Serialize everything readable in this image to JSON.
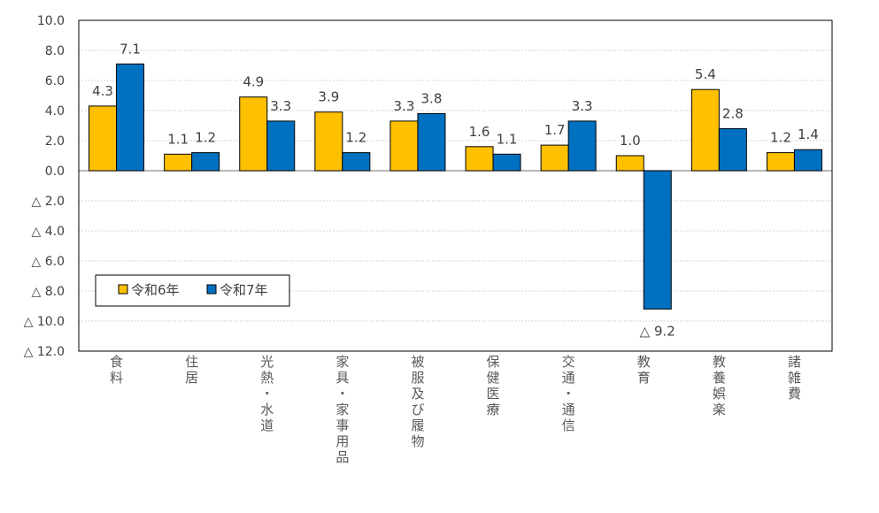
{
  "chart_data": {
    "type": "bar",
    "title": "",
    "xlabel": "",
    "ylabel": "",
    "ylim": [
      -12,
      10
    ],
    "yticks": [
      10,
      8,
      6,
      4,
      2,
      0,
      -2,
      -4,
      -6,
      -8,
      -10,
      -12
    ],
    "ytick_labels": [
      "10.0",
      "8.0",
      "6.0",
      "4.0",
      "2.0",
      "0.0",
      "△ 2.0",
      "△ 4.0",
      "△ 6.0",
      "△ 8.0",
      "△ 10.0",
      "△ 12.0"
    ],
    "grid": true,
    "legend_position": "lower-left",
    "categories": [
      "食料",
      "住居",
      "光熱・水道",
      "家具・家事用品",
      "被服及び履物",
      "保健医療",
      "交通・通信",
      "教育",
      "教養娯楽",
      "諸雑費"
    ],
    "series": [
      {
        "name": "令和6年",
        "color": "#FFC000",
        "values": [
          4.3,
          1.1,
          4.9,
          3.9,
          3.3,
          1.6,
          1.7,
          1.0,
          5.4,
          1.2
        ],
        "labels": [
          "4.3",
          "1.1",
          "4.9",
          "3.9",
          "3.3",
          "1.6",
          "1.7",
          "1.0",
          "5.4",
          "1.2"
        ]
      },
      {
        "name": "令和7年",
        "color": "#0070C0",
        "values": [
          7.1,
          1.2,
          3.3,
          1.2,
          3.8,
          1.1,
          3.3,
          -9.2,
          2.8,
          1.4
        ],
        "labels": [
          "7.1",
          "1.2",
          "3.3",
          "1.2",
          "3.8",
          "1.1",
          "3.3",
          "△ 9.2",
          "2.8",
          "1.4"
        ]
      }
    ]
  }
}
